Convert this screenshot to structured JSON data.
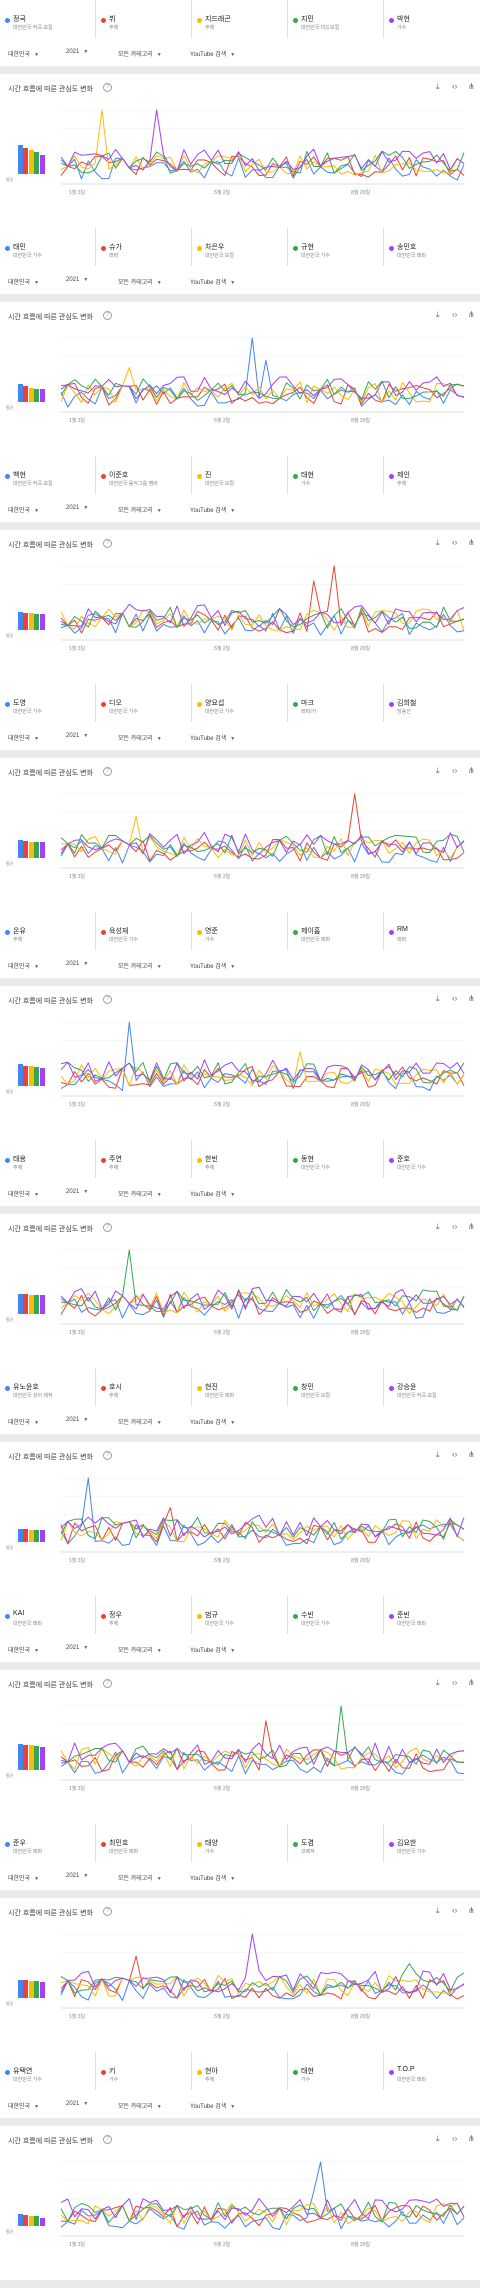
{
  "colors": {
    "blue": "#4285f4",
    "red": "#ea4335",
    "yellow": "#fbbc04",
    "green": "#34a853",
    "purple": "#a142f4"
  },
  "labels": {
    "chart_title": "시간 흐름에 따른 관심도 변화",
    "region": "대한민국",
    "year": "2021",
    "category": "모든 카테고리",
    "property": "YouTube 검색",
    "avg": "평균",
    "help": "?",
    "download_icon": "download-icon",
    "embed_icon": "embed-icon",
    "share_icon": "share-icon",
    "x_ticks": [
      "1월 3일",
      "5월 2일",
      "8월 29일"
    ]
  },
  "groups": [
    {
      "terms": [
        {
          "name": "정국",
          "sub": "대한민국 작곡 보컬"
        },
        {
          "name": "뷔",
          "sub": "주제"
        },
        {
          "name": "지드래곤",
          "sub": "주제"
        },
        {
          "name": "지민",
          "sub": "대한민국 미드보컬"
        },
        {
          "name": "박현",
          "sub": "가수"
        }
      ]
    },
    {
      "terms": [
        {
          "name": "태민",
          "sub": "대한민국 가수"
        },
        {
          "name": "슈가",
          "sub": "래퍼"
        },
        {
          "name": "차은우",
          "sub": "대한민국 보컬"
        },
        {
          "name": "규현",
          "sub": "대한민국 가수"
        },
        {
          "name": "송민호",
          "sub": "대한민국 래퍼"
        }
      ]
    },
    {
      "terms": [
        {
          "name": "백현",
          "sub": "대한민국 작곡 보컬"
        },
        {
          "name": "이준호",
          "sub": "대한민국 음악그룹 멤버"
        },
        {
          "name": "진",
          "sub": "대한민국 보컬"
        },
        {
          "name": "태현",
          "sub": "가수"
        },
        {
          "name": "제인",
          "sub": "주제"
        }
      ]
    },
    {
      "terms": [
        {
          "name": "도영",
          "sub": "대한민국 가수"
        },
        {
          "name": "디오",
          "sub": "대한민국 가수"
        },
        {
          "name": "양요섭",
          "sub": "대한민국 가수"
        },
        {
          "name": "마크",
          "sub": "래퍼/가"
        },
        {
          "name": "김희철",
          "sub": "방송인"
        }
      ]
    },
    {
      "terms": [
        {
          "name": "온유",
          "sub": "주제"
        },
        {
          "name": "육성재",
          "sub": "대한민국 가수"
        },
        {
          "name": "영준",
          "sub": "가수"
        },
        {
          "name": "제이홉",
          "sub": "대한민국 래퍼"
        },
        {
          "name": "RM",
          "sub": "래퍼"
        }
      ]
    },
    {
      "terms": [
        {
          "name": "태용",
          "sub": "주제"
        },
        {
          "name": "주연",
          "sub": "주제"
        },
        {
          "name": "한빈",
          "sub": "주제"
        },
        {
          "name": "동현",
          "sub": "대한민국 가수"
        },
        {
          "name": "준호",
          "sub": "대한민국 가수"
        }
      ]
    },
    {
      "terms": [
        {
          "name": "유노윤호",
          "sub": "대한민국 싱어 제작"
        },
        {
          "name": "호시",
          "sub": "주제"
        },
        {
          "name": "현진",
          "sub": "대한민국 래퍼"
        },
        {
          "name": "창민",
          "sub": "대한민국 보컬"
        },
        {
          "name": "강승윤",
          "sub": "대한민국 작곡 보컬"
        }
      ]
    },
    {
      "terms": [
        {
          "name": "KAI",
          "sub": "대한민국 래퍼"
        },
        {
          "name": "정우",
          "sub": "주제"
        },
        {
          "name": "범규",
          "sub": "대한민국 가수"
        },
        {
          "name": "수빈",
          "sub": "대한민국 가수"
        },
        {
          "name": "준빈",
          "sub": "대한민국 래퍼"
        }
      ]
    },
    {
      "terms": [
        {
          "name": "준우",
          "sub": "대한민국 래퍼"
        },
        {
          "name": "최민호",
          "sub": "대한민국 래퍼"
        },
        {
          "name": "태양",
          "sub": "가수"
        },
        {
          "name": "도겸",
          "sub": "코제작"
        },
        {
          "name": "김요한",
          "sub": "대한민국 가수"
        }
      ]
    },
    {
      "terms": [
        {
          "name": "유택연",
          "sub": "대한민국 가수"
        },
        {
          "name": "키",
          "sub": "가수"
        },
        {
          "name": "현아",
          "sub": "주제"
        },
        {
          "name": "태현",
          "sub": "가수"
        },
        {
          "name": "T.O.P",
          "sub": "대한민국 래퍼"
        }
      ]
    }
  ],
  "charts": [
    {
      "avg": [
        48,
        44,
        40,
        36,
        32
      ],
      "peaks": [
        {
          "s": 2,
          "i": 6,
          "v": 100
        },
        {
          "s": 4,
          "i": 14,
          "v": 100
        }
      ]
    },
    {
      "avg": [
        30,
        26,
        24,
        22,
        22
      ],
      "peaks": [
        {
          "s": 0,
          "i": 28,
          "v": 100
        },
        {
          "s": 0,
          "i": 30,
          "v": 70
        },
        {
          "s": 2,
          "i": 10,
          "v": 60
        }
      ]
    },
    {
      "avg": [
        30,
        28,
        28,
        26,
        26
      ],
      "peaks": [
        {
          "s": 1,
          "i": 40,
          "v": 100
        },
        {
          "s": 1,
          "i": 37,
          "v": 80
        }
      ]
    },
    {
      "avg": [
        30,
        28,
        26,
        26,
        26
      ],
      "peaks": [
        {
          "s": 1,
          "i": 43,
          "v": 100
        },
        {
          "s": 2,
          "i": 11,
          "v": 70
        }
      ]
    },
    {
      "avg": [
        36,
        34,
        34,
        32,
        30
      ],
      "peaks": [
        {
          "s": 0,
          "i": 10,
          "v": 100
        },
        {
          "s": 2,
          "i": 35,
          "v": 60
        }
      ]
    },
    {
      "avg": [
        34,
        34,
        32,
        32,
        32
      ],
      "peaks": [
        {
          "s": 3,
          "i": 10,
          "v": 100
        }
      ]
    },
    {
      "avg": [
        22,
        22,
        20,
        20,
        20
      ],
      "peaks": [
        {
          "s": 0,
          "i": 4,
          "v": 100
        },
        {
          "s": 1,
          "i": 16,
          "v": 60
        }
      ]
    },
    {
      "avg": [
        44,
        42,
        42,
        40,
        38
      ],
      "peaks": [
        {
          "s": 3,
          "i": 41,
          "v": 100
        },
        {
          "s": 1,
          "i": 30,
          "v": 80
        }
      ]
    },
    {
      "avg": [
        30,
        30,
        28,
        28,
        26
      ],
      "peaks": [
        {
          "s": 4,
          "i": 28,
          "v": 100
        },
        {
          "s": 1,
          "i": 11,
          "v": 70
        },
        {
          "s": 3,
          "i": 51,
          "v": 60
        }
      ]
    },
    {
      "avg": [
        20,
        18,
        16,
        16,
        14
      ],
      "peaks": [
        {
          "s": 0,
          "i": 38,
          "v": 100
        },
        {
          "s": 0,
          "i": 37,
          "v": 60
        }
      ]
    }
  ]
}
